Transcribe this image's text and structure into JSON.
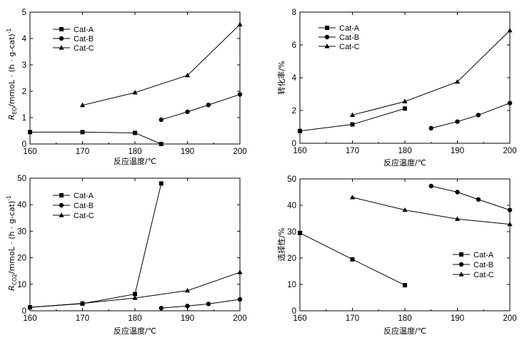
{
  "chart_data": [
    {
      "type": "line",
      "xlabel": "反应温度/℃",
      "ylabel": "R",
      "ylabel_sub": "EO",
      "ylabel_rest": "/mmoL · (h · g-cat)",
      "ylabel_sup": "-1",
      "xlim": [
        160,
        200
      ],
      "ylim": [
        0,
        5
      ],
      "xticks": [
        "160",
        "170",
        "180",
        "190",
        "200"
      ],
      "yticks": [
        "0",
        "1",
        "2",
        "3",
        "4",
        "5"
      ],
      "legend_position": "top-left",
      "series": [
        {
          "name": "Cat-A",
          "marker": "square",
          "x": [
            160,
            170,
            180,
            185
          ],
          "y": [
            0.45,
            0.45,
            0.42,
            0.0
          ]
        },
        {
          "name": "Cat-B",
          "marker": "circle",
          "x": [
            185,
            190,
            194,
            200
          ],
          "y": [
            0.92,
            1.22,
            1.48,
            1.88
          ]
        },
        {
          "name": "Cat-C",
          "marker": "triangle",
          "x": [
            170,
            180,
            190,
            200
          ],
          "y": [
            1.47,
            1.95,
            2.6,
            4.53
          ]
        }
      ]
    },
    {
      "type": "line",
      "xlabel": "反应温度/℃",
      "ylabel": "转化率/%",
      "xlim": [
        160,
        200
      ],
      "ylim": [
        0,
        8
      ],
      "xticks": [
        "160",
        "170",
        "180",
        "190",
        "200"
      ],
      "yticks": [
        "0",
        "2",
        "4",
        "6",
        "8"
      ],
      "legend_position": "top-left",
      "series": [
        {
          "name": "Cat-A",
          "marker": "square",
          "x": [
            160,
            170,
            180
          ],
          "y": [
            0.75,
            1.15,
            2.12
          ]
        },
        {
          "name": "Cat-B",
          "marker": "circle",
          "x": [
            185,
            190,
            194,
            200
          ],
          "y": [
            0.92,
            1.32,
            1.72,
            2.45
          ]
        },
        {
          "name": "Cat-C",
          "marker": "triangle",
          "x": [
            170,
            180,
            190,
            200
          ],
          "y": [
            1.72,
            2.55,
            3.75,
            6.88
          ]
        }
      ]
    },
    {
      "type": "line",
      "xlabel": "反应温度/℃",
      "ylabel": "R",
      "ylabel_sub": "CO2",
      "ylabel_rest": "/mmoL · (h · g-cat)",
      "ylabel_sup": "-1",
      "xlim": [
        160,
        200
      ],
      "ylim": [
        0,
        50
      ],
      "xticks": [
        "160",
        "170",
        "180",
        "190",
        "200"
      ],
      "yticks": [
        "0",
        "10",
        "20",
        "30",
        "40",
        "50"
      ],
      "legend_position": "top-left",
      "series": [
        {
          "name": "Cat-A",
          "marker": "square",
          "x": [
            160,
            170,
            180,
            185
          ],
          "y": [
            1.3,
            2.7,
            6.3,
            48.0
          ]
        },
        {
          "name": "Cat-B",
          "marker": "circle",
          "x": [
            185,
            190,
            194,
            200
          ],
          "y": [
            1.0,
            1.8,
            2.6,
            4.3
          ]
        },
        {
          "name": "Cat-C",
          "marker": "triangle",
          "x": [
            160,
            170,
            180,
            190,
            200
          ],
          "y": [
            1.3,
            2.8,
            4.8,
            7.6,
            14.5
          ]
        }
      ]
    },
    {
      "type": "line",
      "xlabel": "反应温度/℃",
      "ylabel": "选择性/%",
      "xlim": [
        160,
        200
      ],
      "ylim": [
        0,
        50
      ],
      "xticks": [
        "160",
        "170",
        "180",
        "190",
        "200"
      ],
      "yticks": [
        "0",
        "10",
        "20",
        "30",
        "40",
        "50"
      ],
      "legend_position": "bottom-right",
      "series": [
        {
          "name": "Cat-A",
          "marker": "square",
          "x": [
            160,
            170,
            180
          ],
          "y": [
            29.5,
            19.5,
            9.7
          ]
        },
        {
          "name": "Cat-B",
          "marker": "circle",
          "x": [
            185,
            190,
            194,
            200
          ],
          "y": [
            47.3,
            45.0,
            42.2,
            38.2
          ]
        },
        {
          "name": "Cat-C",
          "marker": "triangle",
          "x": [
            170,
            180,
            190,
            200
          ],
          "y": [
            43.0,
            38.2,
            34.8,
            32.8
          ]
        }
      ]
    }
  ]
}
